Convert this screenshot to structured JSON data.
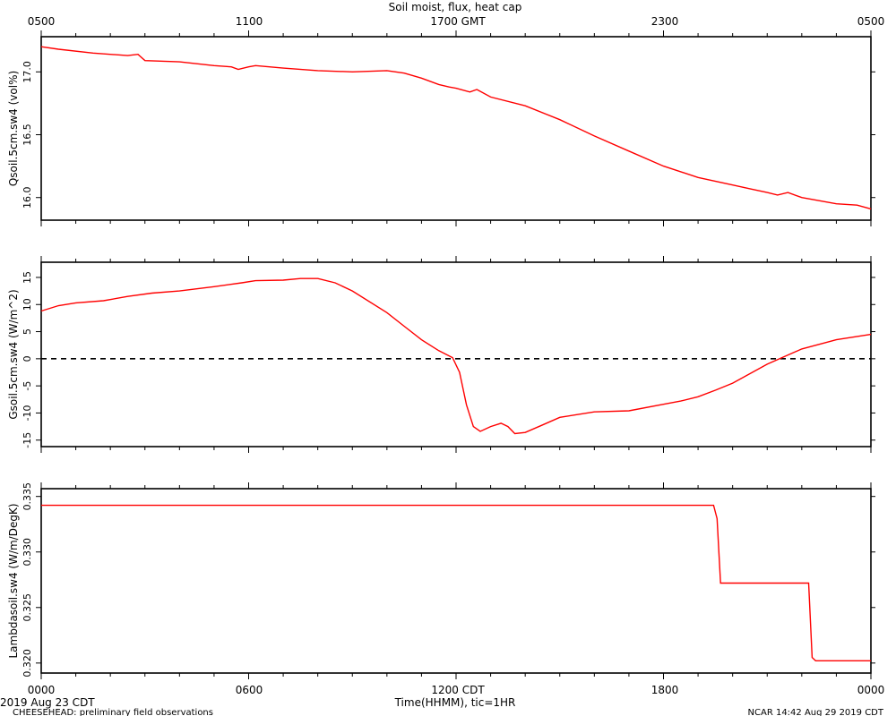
{
  "title": "Soil moist, flux, heat cap",
  "top_axis_labels": [
    "0500",
    "1100",
    "1700 GMT",
    "2300",
    "0500"
  ],
  "bottom_axis_labels": [
    "0000",
    "0600",
    "1200 CDT",
    "1800",
    "0000"
  ],
  "bottom_xlabel": "Time(HHMM), tic=1HR",
  "date_label": "2019 Aug 23 CDT",
  "footer_left": "CHEESEHEAD: preliminary field observations",
  "footer_right": "NCAR 14:42 Aug 29 2019 CDT",
  "colors": {
    "series": "#ff0000",
    "axes": "#000000"
  },
  "chart_data": [
    {
      "type": "line",
      "ylabel": "Qsoil.5cm.sw4 (vol%)",
      "xlim": [
        0,
        24
      ],
      "ylim": [
        15.82,
        17.28
      ],
      "yticks": [
        16.0,
        16.5,
        17.0
      ],
      "ytick_labels": [
        "16.0",
        "16.5",
        "17.0"
      ],
      "series": [
        {
          "x": [
            0,
            0.5,
            1.5,
            2.5,
            2.8,
            3.0,
            4,
            5,
            5.5,
            5.7,
            6,
            6.2,
            7,
            8,
            9,
            10,
            10.5,
            11,
            11.5,
            11.8,
            12,
            12.4,
            12.6,
            13,
            14,
            15,
            16,
            17,
            18,
            19,
            20,
            20.5,
            21,
            21.3,
            21.6,
            22,
            23,
            23.6,
            24
          ],
          "y": [
            17.2,
            17.18,
            17.15,
            17.13,
            17.14,
            17.09,
            17.08,
            17.05,
            17.04,
            17.02,
            17.04,
            17.05,
            17.03,
            17.01,
            17.0,
            17.01,
            16.99,
            16.95,
            16.9,
            16.88,
            16.87,
            16.84,
            16.86,
            16.8,
            16.73,
            16.62,
            16.49,
            16.37,
            16.25,
            16.16,
            16.1,
            16.07,
            16.04,
            16.02,
            16.04,
            16.0,
            15.95,
            15.94,
            15.91
          ]
        }
      ]
    },
    {
      "type": "line",
      "ylabel": "Gsoil.5cm.sw4 (W/m^2)",
      "xlim": [
        0,
        24
      ],
      "ylim": [
        -16.2,
        17.8
      ],
      "yticks": [
        -15,
        -10,
        -5,
        0,
        5,
        10,
        15
      ],
      "ytick_labels": [
        "-15",
        "-10",
        "-5",
        "0",
        "5",
        "10",
        "15"
      ],
      "reference_line": {
        "y": 0,
        "style": "dashed"
      },
      "series": [
        {
          "x": [
            0,
            0.5,
            1,
            1.8,
            2.5,
            3.2,
            4,
            5,
            5.8,
            6.2,
            7,
            7.5,
            8,
            8.5,
            9,
            10,
            10.5,
            11,
            11.5,
            11.9,
            12.1,
            12.3,
            12.5,
            12.7,
            13,
            13.3,
            13.5,
            13.7,
            14,
            14.5,
            15,
            16,
            17,
            18,
            18.5,
            19,
            19.5,
            20,
            21,
            22,
            23,
            24
          ],
          "y": [
            8.8,
            9.8,
            10.3,
            10.7,
            11.5,
            12.1,
            12.5,
            13.3,
            14.0,
            14.4,
            14.5,
            14.8,
            14.8,
            14.0,
            12.5,
            8.5,
            6.0,
            3.5,
            1.5,
            0.2,
            -2.5,
            -8.5,
            -12.5,
            -13.4,
            -12.5,
            -11.9,
            -12.5,
            -13.8,
            -13.6,
            -12.2,
            -10.8,
            -9.8,
            -9.6,
            -8.4,
            -7.8,
            -7.0,
            -5.8,
            -4.5,
            -1.0,
            1.8,
            3.5,
            4.5
          ]
        }
      ]
    },
    {
      "type": "line",
      "ylabel": "Lambdasoil.sw4 (W/m/DegK)",
      "xlim": [
        0,
        24
      ],
      "ylim": [
        0.3191,
        0.3357
      ],
      "yticks": [
        0.32,
        0.325,
        0.33,
        0.335
      ],
      "ytick_labels": [
        "0.320",
        "0.325",
        "0.330",
        "0.335"
      ],
      "series": [
        {
          "x": [
            0,
            19.45,
            19.55,
            19.65,
            22.1,
            22.2,
            22.3,
            22.4,
            24
          ],
          "y": [
            0.3342,
            0.3342,
            0.333,
            0.3272,
            0.3272,
            0.3272,
            0.3205,
            0.3202,
            0.3202
          ]
        }
      ]
    }
  ]
}
